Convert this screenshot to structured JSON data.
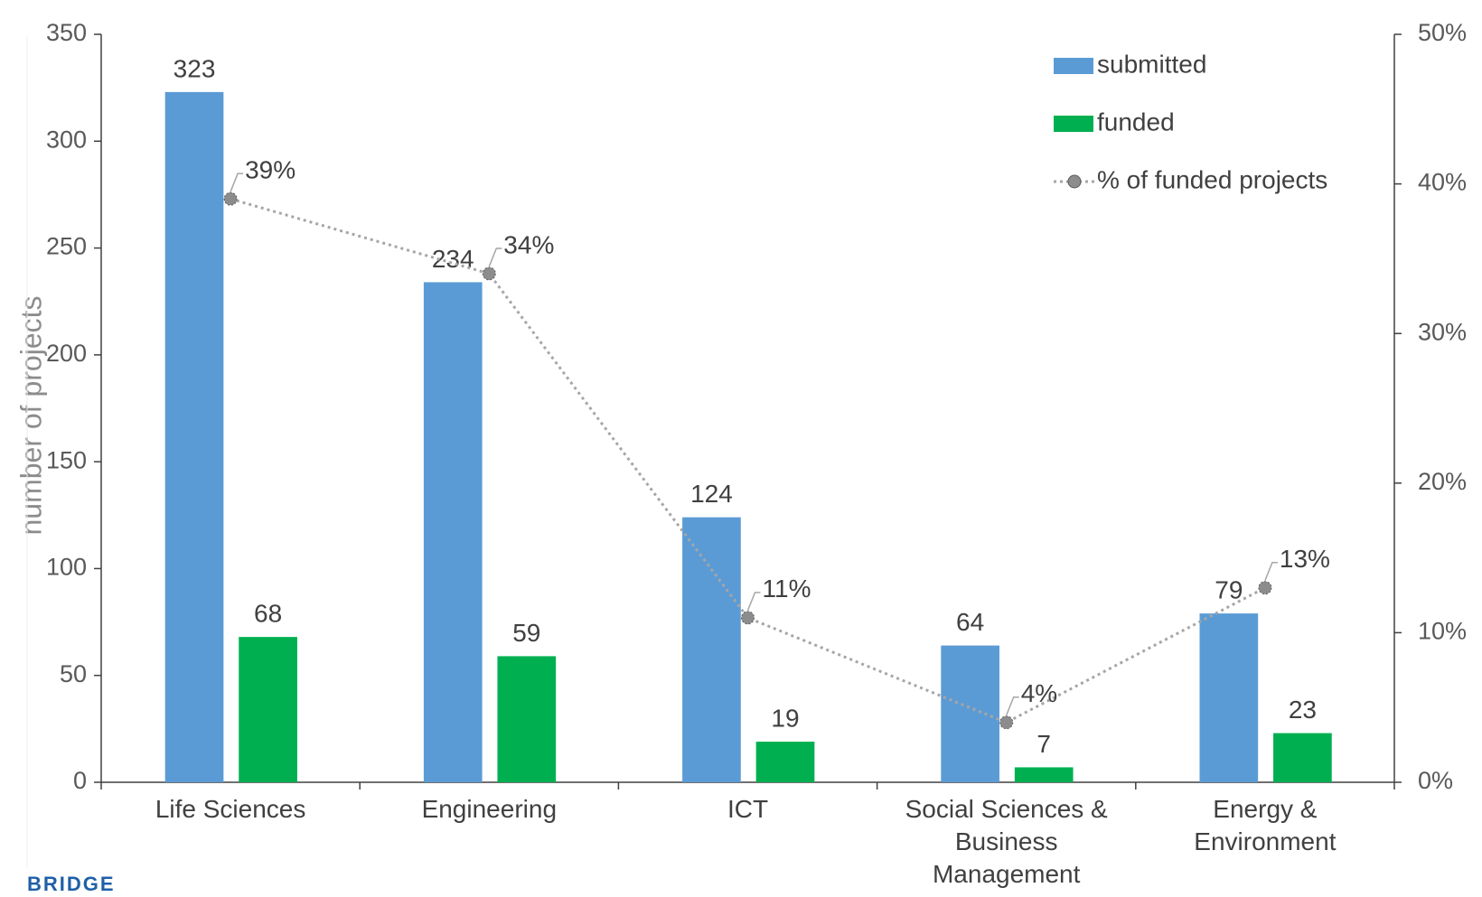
{
  "chart_data": {
    "type": "bar",
    "y_label": "number of projects",
    "categories": [
      "Life Sciences",
      "Engineering",
      "ICT",
      "Social Sciences & Business Management",
      "Energy & Environment"
    ],
    "series": [
      {
        "name": "submitted",
        "color": "#5b9bd5",
        "values": [
          323,
          234,
          124,
          64,
          79
        ]
      },
      {
        "name": "funded",
        "color": "#00b050",
        "values": [
          68,
          59,
          19,
          7,
          23
        ]
      },
      {
        "name": "% of funded projects",
        "color": "#a6a6a6",
        "type": "line",
        "axis": "y2",
        "values": [
          39,
          34,
          11,
          4,
          13
        ],
        "value_labels": [
          "39%",
          "34%",
          "11%",
          "4%",
          "13%"
        ]
      }
    ],
    "ylim": [
      0,
      350
    ],
    "yticks": [
      0,
      50,
      100,
      150,
      200,
      250,
      300,
      350
    ],
    "y2lim": [
      0,
      50
    ],
    "y2ticks": [
      {
        "value": 0,
        "label": "0%"
      },
      {
        "value": 10,
        "label": "10%"
      },
      {
        "value": 20,
        "label": "20%"
      },
      {
        "value": 30,
        "label": "30%"
      },
      {
        "value": 40,
        "label": "40%"
      },
      {
        "value": 50,
        "label": "50%"
      }
    ],
    "legend": "top-right",
    "logo": "BRIDGE"
  }
}
